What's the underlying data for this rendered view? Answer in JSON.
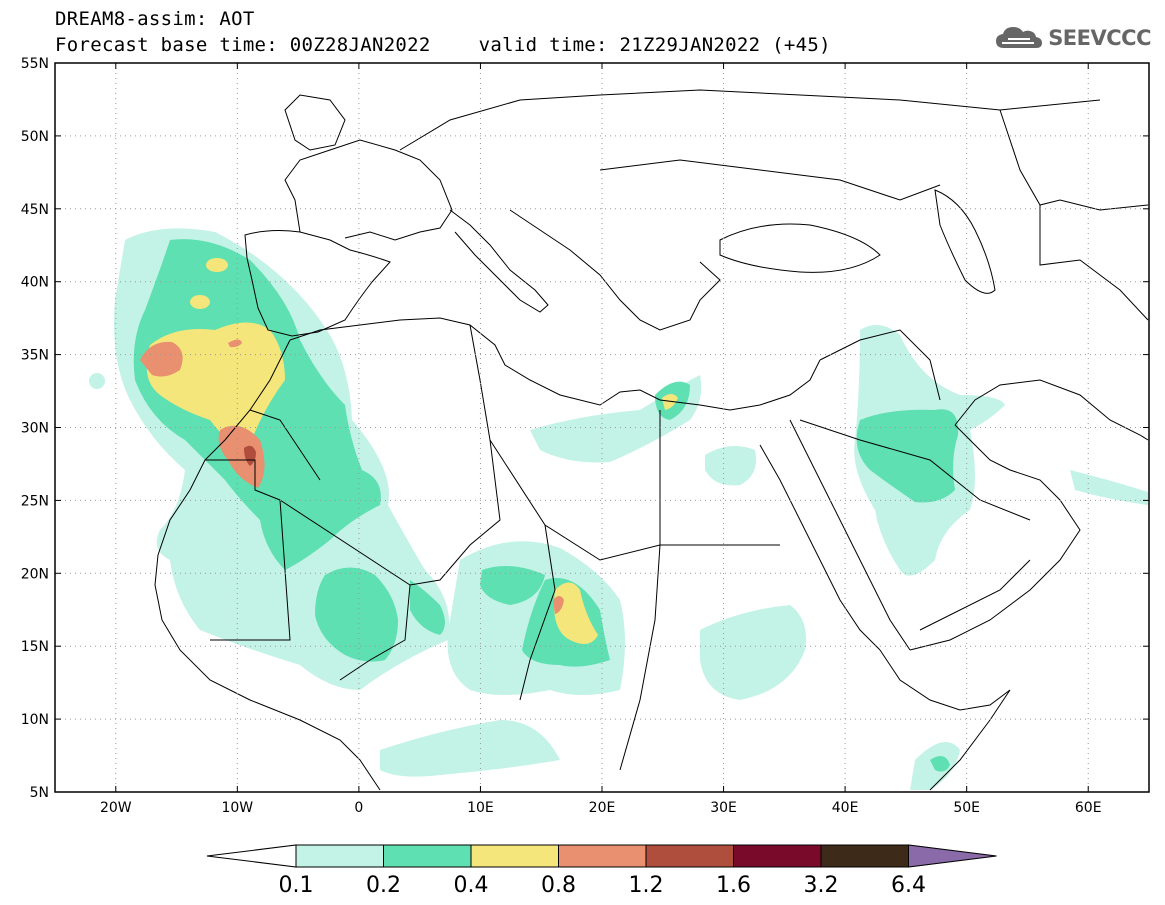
{
  "header": {
    "title": "DREAM8-assim: AOT",
    "base_time": "Forecast base time: 00Z28JAN2022",
    "valid_time": "valid time: 21Z29JAN2022 (+45)"
  },
  "logo": {
    "text": "SEEVCCC",
    "icon": "cloud-icon"
  },
  "map": {
    "lon_range": [
      -25,
      65
    ],
    "lat_range": [
      5,
      55
    ],
    "lon_ticks": [
      {
        "v": -20,
        "label": "20W"
      },
      {
        "v": -10,
        "label": "10W"
      },
      {
        "v": 0,
        "label": "0"
      },
      {
        "v": 10,
        "label": "10E"
      },
      {
        "v": 20,
        "label": "20E"
      },
      {
        "v": 30,
        "label": "30E"
      },
      {
        "v": 40,
        "label": "40E"
      },
      {
        "v": 50,
        "label": "50E"
      },
      {
        "v": 60,
        "label": "60E"
      }
    ],
    "lat_ticks": [
      {
        "v": 55,
        "label": "55N"
      },
      {
        "v": 50,
        "label": "50N"
      },
      {
        "v": 45,
        "label": "45N"
      },
      {
        "v": 40,
        "label": "40N"
      },
      {
        "v": 35,
        "label": "35N"
      },
      {
        "v": 30,
        "label": "30N"
      },
      {
        "v": 25,
        "label": "25N"
      },
      {
        "v": 20,
        "label": "20N"
      },
      {
        "v": 15,
        "label": "15N"
      },
      {
        "v": 10,
        "label": "10N"
      },
      {
        "v": 5,
        "label": "5N"
      }
    ],
    "grid": true
  },
  "colorbar": {
    "boundaries": [
      "0.1",
      "0.2",
      "0.4",
      "0.8",
      "1.2",
      "1.6",
      "3.2",
      "6.4"
    ],
    "colors": [
      "#ffffff",
      "#c3f2e6",
      "#5fe0b2",
      "#f4e67a",
      "#e89070",
      "#b04e3e",
      "#7a0a2a",
      "#3e2a18",
      "#8a6aa8"
    ]
  }
}
